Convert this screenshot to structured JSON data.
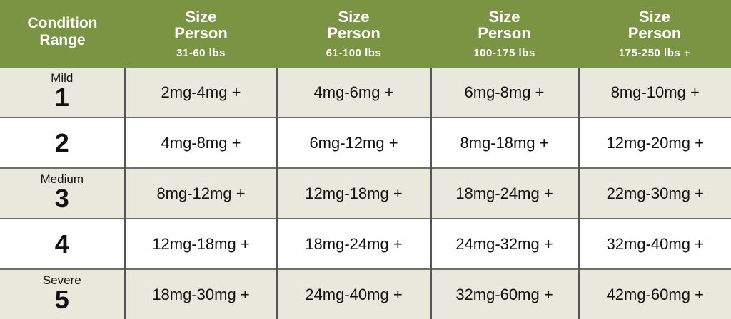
{
  "header": {
    "condition_label": "Condition Range",
    "columns": [
      {
        "title": "Size Person",
        "weight": "31-60 lbs"
      },
      {
        "title": "Size Person",
        "weight": "61-100 lbs"
      },
      {
        "title": "Size Person",
        "weight": "100-175 lbs"
      },
      {
        "title": "Size Person",
        "weight": "175-250 lbs +"
      }
    ]
  },
  "rows": [
    {
      "label": "Mild",
      "level": "1",
      "doses": [
        "2mg-4mg +",
        "4mg-6mg +",
        "6mg-8mg +",
        "8mg-10mg +"
      ]
    },
    {
      "label": "",
      "level": "2",
      "doses": [
        "4mg-8mg +",
        "6mg-12mg +",
        "8mg-18mg +",
        "12mg-20mg +"
      ]
    },
    {
      "label": "Medium",
      "level": "3",
      "doses": [
        "8mg-12mg +",
        "12mg-18mg +",
        "18mg-24mg +",
        "22mg-30mg +"
      ]
    },
    {
      "label": "",
      "level": "4",
      "doses": [
        "12mg-18mg +",
        "18mg-24mg +",
        "24mg-32mg +",
        "32mg-40mg +"
      ]
    },
    {
      "label": "Severe",
      "level": "5",
      "doses": [
        "18mg-30mg +",
        "24mg-40mg +",
        "32mg-60mg +",
        "42mg-60mg +"
      ]
    }
  ],
  "colors": {
    "header_bg": "#7a9444",
    "tinted_row_bg": "#e8e8dc",
    "header_text": "#ffffff"
  }
}
